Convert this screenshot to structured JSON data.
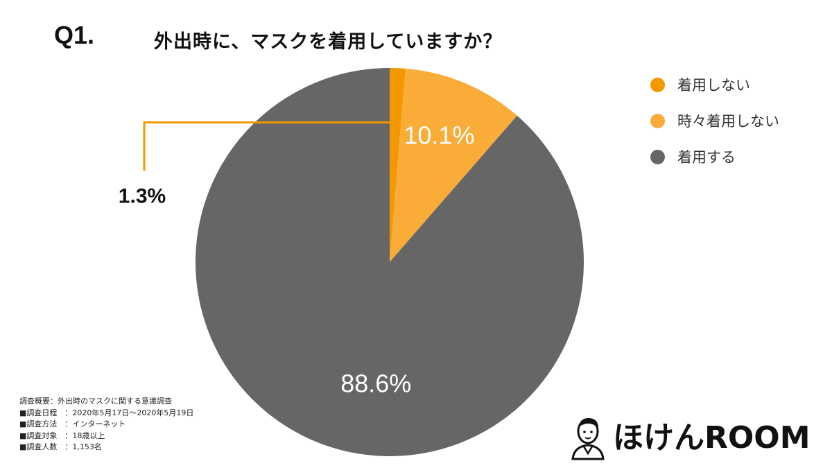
{
  "question": {
    "number": "Q1.",
    "text": "外出時に、マスクを着用していますか？"
  },
  "chart_data": {
    "type": "pie",
    "title": "外出時に、マスクを着用していますか？",
    "slices": [
      {
        "label": "着用しない",
        "value": 1.3,
        "display": "1.3%",
        "color": "#F39800"
      },
      {
        "label": "時々着用しない",
        "value": 10.1,
        "display": "10.1%",
        "color": "#F9AC38"
      },
      {
        "label": "着用する",
        "value": 88.6,
        "display": "88.6%",
        "color": "#666666"
      }
    ],
    "start": "12 o'clock, clockwise",
    "legend_position": "right",
    "leader_line_color": "#F39800"
  },
  "survey": {
    "lines": [
      "調査概要：外出時のマスクに関する意識調査",
      "■調査日程　：2020年5月17日～2020年5月19日",
      "■調査方法　：インターネット",
      "■調査対象　：18歳以上",
      "■調査人数　：1,153名"
    ]
  },
  "logo": {
    "text": "ほけんROOM",
    "accent_color": "#E60012"
  }
}
